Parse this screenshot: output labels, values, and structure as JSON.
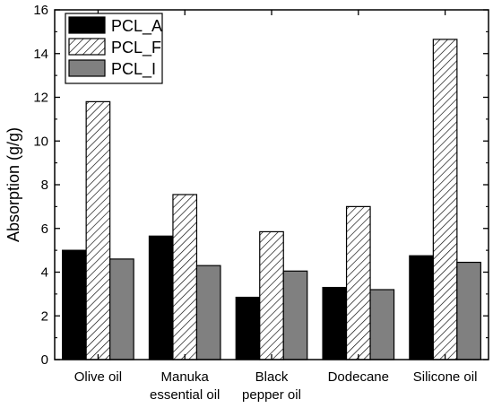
{
  "chart_data": {
    "type": "bar",
    "title": "",
    "xlabel": "",
    "ylabel": "Absorption (g/g)",
    "ylim": [
      0,
      16
    ],
    "yticks": [
      0,
      2,
      4,
      6,
      8,
      10,
      12,
      14,
      16
    ],
    "categories": [
      [
        "Olive oil"
      ],
      [
        "Manuka",
        "essential oil"
      ],
      [
        "Black",
        "pepper oil"
      ],
      [
        "Dodecane"
      ],
      [
        "Silicone oil"
      ]
    ],
    "series": [
      {
        "name": "PCL_A",
        "fill": "solid",
        "color": "#000000",
        "values": [
          5.0,
          5.65,
          2.85,
          3.3,
          4.75
        ]
      },
      {
        "name": "PCL_F",
        "fill": "hatched",
        "color": "#ffffff",
        "values": [
          11.8,
          7.55,
          5.85,
          7.0,
          14.65
        ]
      },
      {
        "name": "PCL_I",
        "fill": "solid",
        "color": "#808080",
        "values": [
          4.6,
          4.3,
          4.05,
          3.2,
          4.45
        ]
      }
    ],
    "legend_position": "top-left",
    "grid": false
  }
}
